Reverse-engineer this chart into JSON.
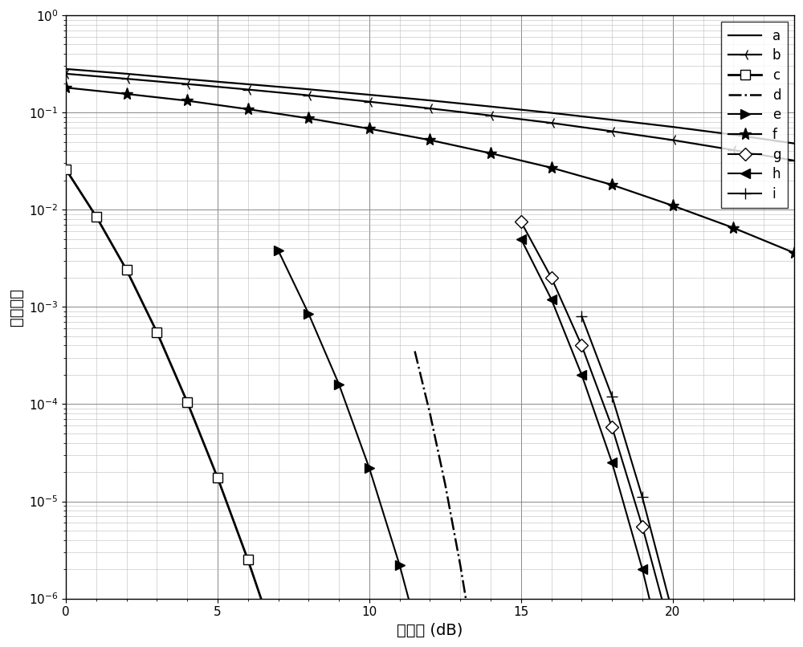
{
  "xlabel": "信噪比 (dB)",
  "ylabel": "误比特率",
  "xlim": [
    0,
    24
  ],
  "ylim_log_min": -6,
  "ylim_log_max": 0,
  "xticks": [
    0,
    5,
    10,
    15,
    20
  ],
  "background_color": "#ffffff",
  "curves": [
    {
      "key": "a",
      "snr": [
        0,
        2,
        4,
        6,
        8,
        10,
        12,
        14,
        16,
        18,
        20,
        22,
        24
      ],
      "ber": [
        0.28,
        0.25,
        0.22,
        0.195,
        0.173,
        0.152,
        0.133,
        0.115,
        0.099,
        0.084,
        0.071,
        0.059,
        0.048
      ],
      "linestyle": "-",
      "marker": "None",
      "color": "#000000",
      "linewidth": 1.6,
      "markersize": 8,
      "markerfacecolor": "#000000",
      "label": "a"
    },
    {
      "key": "b",
      "snr": [
        0,
        2,
        4,
        6,
        8,
        10,
        12,
        14,
        16,
        18,
        20,
        22,
        24
      ],
      "ber": [
        0.25,
        0.222,
        0.196,
        0.172,
        0.15,
        0.129,
        0.11,
        0.093,
        0.078,
        0.064,
        0.052,
        0.041,
        0.032
      ],
      "linestyle": "-",
      "marker": "3",
      "color": "#000000",
      "linewidth": 1.6,
      "markersize": 10,
      "markerfacecolor": "#000000",
      "label": "b"
    },
    {
      "key": "c",
      "snr": [
        0,
        1,
        2,
        3,
        4,
        5,
        6,
        7
      ],
      "ber": [
        0.026,
        0.0085,
        0.0024,
        0.00055,
        0.000105,
        1.75e-05,
        2.5e-06,
        3e-07
      ],
      "linestyle": "-",
      "marker": "s",
      "color": "#000000",
      "linewidth": 2.0,
      "markersize": 8,
      "markerfacecolor": "#ffffff",
      "label": "c"
    },
    {
      "key": "d",
      "snr": [
        11.5,
        12.0,
        12.5,
        13.0,
        13.5,
        14.0,
        14.5,
        15.0
      ],
      "ber": [
        0.00035,
        8e-05,
        1.5e-05,
        2.2e-06,
        2.5e-07,
        2e-08,
        1.2e-09,
        5e-11
      ],
      "linestyle": "-.",
      "marker": "None",
      "color": "#000000",
      "linewidth": 1.8,
      "markersize": 7,
      "markerfacecolor": "#000000",
      "label": "d"
    },
    {
      "key": "e",
      "snr": [
        7,
        8,
        9,
        10,
        11,
        12,
        13,
        14
      ],
      "ber": [
        0.0038,
        0.00085,
        0.00016,
        2.2e-05,
        2.2e-06,
        1.5e-07,
        7e-09,
        2e-10
      ],
      "linestyle": "-",
      "marker": ">",
      "color": "#000000",
      "linewidth": 1.5,
      "markersize": 8,
      "markerfacecolor": "#000000",
      "label": "e"
    },
    {
      "key": "f",
      "snr": [
        0,
        2,
        4,
        6,
        8,
        10,
        12,
        14,
        16,
        18,
        20,
        22,
        24
      ],
      "ber": [
        0.18,
        0.155,
        0.132,
        0.108,
        0.087,
        0.068,
        0.052,
        0.038,
        0.027,
        0.018,
        0.011,
        0.0065,
        0.0036
      ],
      "linestyle": "-",
      "marker": "*",
      "color": "#000000",
      "linewidth": 1.6,
      "markersize": 11,
      "markerfacecolor": "#000000",
      "label": "f"
    },
    {
      "key": "g",
      "snr": [
        15,
        16,
        17,
        18,
        19,
        20,
        21,
        22,
        23
      ],
      "ber": [
        0.0075,
        0.002,
        0.0004,
        5.8e-05,
        5.5e-06,
        3.8e-07,
        1.8e-08,
        6e-10,
        1.5e-11
      ],
      "linestyle": "-",
      "marker": "D",
      "color": "#000000",
      "linewidth": 1.5,
      "markersize": 8,
      "markerfacecolor": "#ffffff",
      "label": "g"
    },
    {
      "key": "h",
      "snr": [
        15,
        16,
        17,
        18,
        19,
        20,
        21,
        22
      ],
      "ber": [
        0.005,
        0.0012,
        0.0002,
        2.5e-05,
        2e-06,
        1e-07,
        3.5e-09,
        8e-11
      ],
      "linestyle": "-",
      "marker": "<",
      "color": "#000000",
      "linewidth": 1.5,
      "markersize": 8,
      "markerfacecolor": "#000000",
      "label": "h"
    },
    {
      "key": "i",
      "snr": [
        17,
        18,
        19,
        20,
        21,
        22,
        23
      ],
      "ber": [
        0.0008,
        0.00012,
        1.1e-05,
        7e-07,
        3e-08,
        8e-10,
        1.5e-11
      ],
      "linestyle": "-",
      "marker": "+",
      "color": "#000000",
      "linewidth": 1.5,
      "markersize": 10,
      "markerfacecolor": "#000000",
      "label": "i"
    }
  ]
}
